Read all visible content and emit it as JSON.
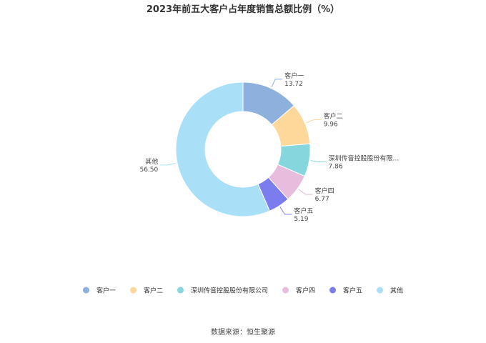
{
  "chart_data": {
    "type": "pie",
    "title": "2023年前五大客户占年度销售总额比例（%）",
    "categories": [
      "客户一",
      "客户二",
      "深圳传音控股股份有限公司",
      "客户四",
      "客户五",
      "其他"
    ],
    "slice_labels": [
      "客户一",
      "客户二",
      "深圳传音控股股份有限...",
      "客户四",
      "客户五",
      "其他"
    ],
    "values": [
      13.72,
      9.96,
      7.86,
      6.77,
      5.19,
      56.5
    ],
    "value_labels": [
      "13.72",
      "9.96",
      "7.86",
      "6.77",
      "5.19",
      "56.50"
    ],
    "colors": [
      "#8eb0dc",
      "#fdd89a",
      "#86d7dd",
      "#e8bcdc",
      "#7b7cee",
      "#aadff8"
    ],
    "donut": true,
    "legend_position": "bottom"
  },
  "source": "数据来源：恒生聚源"
}
